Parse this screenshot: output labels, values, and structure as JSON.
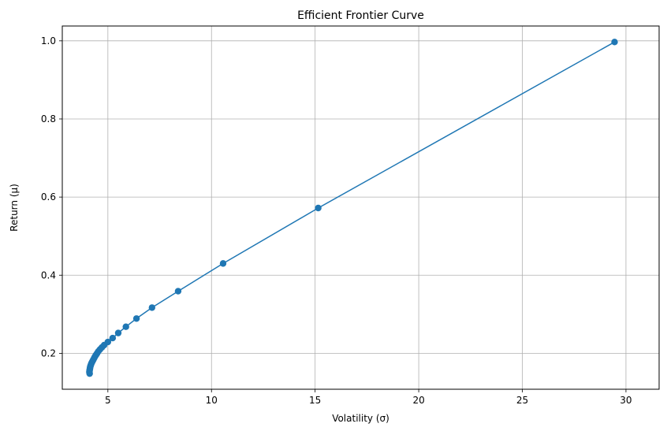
{
  "chart_data": {
    "type": "line",
    "title": "Efficient Frontier Curve",
    "xlabel": "Volatility (σ)",
    "ylabel": "Return (μ)",
    "xlim": [
      2.8,
      31.6
    ],
    "ylim": [
      0.108,
      1.038
    ],
    "xticks": [
      5,
      10,
      15,
      20,
      25,
      30
    ],
    "xtick_labels": [
      "5",
      "10",
      "15",
      "20",
      "25",
      "30"
    ],
    "yticks": [
      0.2,
      0.4,
      0.6,
      0.8,
      1.0
    ],
    "ytick_labels": [
      "0.2",
      "0.4",
      "0.6",
      "0.8",
      "1.0"
    ],
    "grid": true,
    "series": [
      {
        "color": "#1f77b4",
        "marker": "circle",
        "points": [
          {
            "x": 4.12,
            "y": 0.148
          },
          {
            "x": 4.11,
            "y": 0.151
          },
          {
            "x": 4.11,
            "y": 0.154
          },
          {
            "x": 4.12,
            "y": 0.157
          },
          {
            "x": 4.13,
            "y": 0.16
          },
          {
            "x": 4.14,
            "y": 0.163
          },
          {
            "x": 4.15,
            "y": 0.166
          },
          {
            "x": 4.17,
            "y": 0.169
          },
          {
            "x": 4.19,
            "y": 0.172
          },
          {
            "x": 4.21,
            "y": 0.175
          },
          {
            "x": 4.24,
            "y": 0.178
          },
          {
            "x": 4.27,
            "y": 0.181
          },
          {
            "x": 4.3,
            "y": 0.184
          },
          {
            "x": 4.34,
            "y": 0.188
          },
          {
            "x": 4.38,
            "y": 0.192
          },
          {
            "x": 4.43,
            "y": 0.196
          },
          {
            "x": 4.48,
            "y": 0.2
          },
          {
            "x": 4.54,
            "y": 0.205
          },
          {
            "x": 4.62,
            "y": 0.21
          },
          {
            "x": 4.71,
            "y": 0.215
          },
          {
            "x": 4.82,
            "y": 0.221
          },
          {
            "x": 5.0,
            "y": 0.229
          },
          {
            "x": 5.23,
            "y": 0.239
          },
          {
            "x": 5.5,
            "y": 0.252
          },
          {
            "x": 5.87,
            "y": 0.268
          },
          {
            "x": 6.38,
            "y": 0.289
          },
          {
            "x": 7.13,
            "y": 0.317
          },
          {
            "x": 8.39,
            "y": 0.359
          },
          {
            "x": 10.56,
            "y": 0.43
          },
          {
            "x": 15.15,
            "y": 0.572
          },
          {
            "x": 29.45,
            "y": 0.997
          }
        ]
      }
    ]
  }
}
